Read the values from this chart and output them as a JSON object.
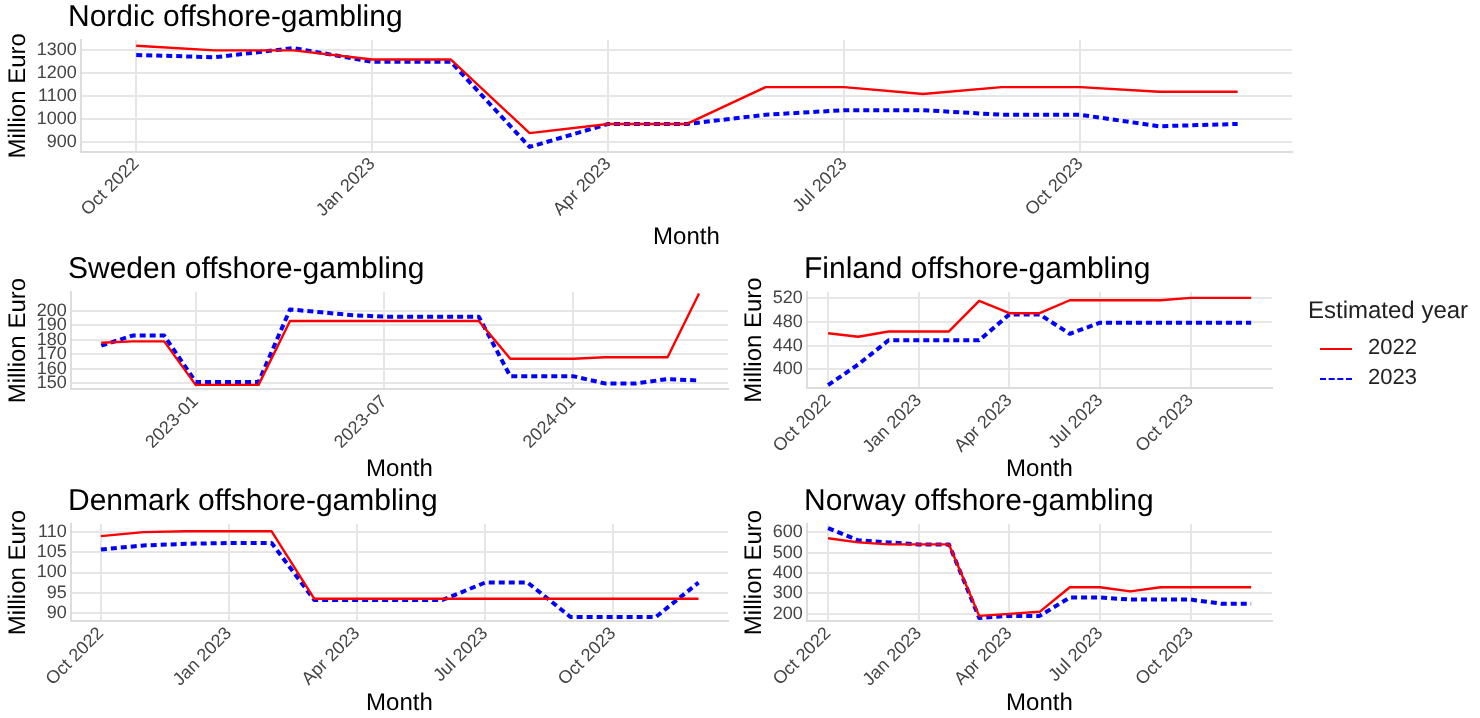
{
  "chart_data": [
    {
      "type": "line",
      "title": "Nordic offshore-gambling",
      "xlabel": "Month",
      "ylabel": "Million Euro",
      "grid": true,
      "marker": "none",
      "legend": "right",
      "legend_title": "Estimated year",
      "x": [
        "2022-10",
        "2022-11",
        "2022-12",
        "2023-01",
        "2023-02",
        "2023-03",
        "2023-04",
        "2023-05",
        "2023-06",
        "2023-07",
        "2023-08",
        "2023-09",
        "2023-10",
        "2023-11",
        "2023-12"
      ],
      "xlim": [
        "2022-09-10",
        "2023-12-22"
      ],
      "xticks": [
        {
          "value": "2022-10",
          "label": "Oct 2022"
        },
        {
          "value": "2023-01",
          "label": "Jan 2023"
        },
        {
          "value": "2023-04",
          "label": "Apr 2023"
        },
        {
          "value": "2023-07",
          "label": "Jul 2023"
        },
        {
          "value": "2023-10",
          "label": "Oct 2023"
        }
      ],
      "ylim": [
        860,
        1345
      ],
      "yticks": [
        900,
        1000,
        1100,
        1200,
        1300
      ],
      "series": [
        {
          "name": "2022",
          "color": "#ff0000",
          "line_style": "solid",
          "values": [
            1320,
            1300,
            1300,
            1260,
            1260,
            940,
            980,
            980,
            1140,
            1140,
            1110,
            1140,
            1140,
            1120,
            1120
          ]
        },
        {
          "name": "2023",
          "color": "#0000ff",
          "line_style": "dashed",
          "values": [
            1280,
            1270,
            1310,
            1250,
            1250,
            880,
            980,
            980,
            1020,
            1040,
            1040,
            1020,
            1020,
            970,
            980
          ]
        }
      ]
    },
    {
      "type": "line",
      "title": "Sweden offshore-gambling",
      "xlabel": "Month",
      "ylabel": "Million Euro",
      "grid": true,
      "marker": "none",
      "x": [
        "2022-10",
        "2022-11",
        "2022-12",
        "2023-01",
        "2023-02",
        "2023-03",
        "2023-04",
        "2023-05",
        "2023-06",
        "2023-07",
        "2023-08",
        "2023-09",
        "2023-10",
        "2023-11",
        "2023-12",
        "2024-01",
        "2024-02",
        "2024-03",
        "2024-04",
        "2024-05"
      ],
      "xlim": [
        "2022-09-02",
        "2024-05-29"
      ],
      "xticks": [
        {
          "value": "2023-01",
          "label": "2023-01"
        },
        {
          "value": "2023-07",
          "label": "2023-07"
        },
        {
          "value": "2024-01",
          "label": "2024-01"
        }
      ],
      "ylim": [
        146,
        213
      ],
      "yticks": [
        150,
        160,
        170,
        180,
        190,
        200
      ],
      "series": [
        {
          "name": "2022",
          "color": "#ff0000",
          "line_style": "solid",
          "values": [
            178,
            179,
            179,
            149,
            149,
            149,
            193,
            193,
            193,
            193,
            193,
            193,
            193,
            167,
            167,
            167,
            168,
            168,
            168,
            212
          ]
        },
        {
          "name": "2023",
          "color": "#0000ff",
          "line_style": "dashed",
          "values": [
            176,
            183,
            183,
            151,
            151,
            151,
            201,
            199,
            197,
            196,
            196,
            196,
            196,
            155,
            155,
            155,
            150,
            150,
            153,
            152
          ]
        }
      ]
    },
    {
      "type": "line",
      "title": "Finland offshore-gambling",
      "xlabel": "Month",
      "ylabel": "Million Euro",
      "grid": true,
      "marker": "none",
      "x": [
        "2022-10",
        "2022-11",
        "2022-12",
        "2023-01",
        "2023-02",
        "2023-03",
        "2023-04",
        "2023-05",
        "2023-06",
        "2023-07",
        "2023-08",
        "2023-09",
        "2023-10",
        "2023-11",
        "2023-12"
      ],
      "xlim": [
        "2022-09-10",
        "2023-12-22"
      ],
      "xticks": [
        {
          "value": "2022-10",
          "label": "Oct 2022"
        },
        {
          "value": "2023-01",
          "label": "Jan 2023"
        },
        {
          "value": "2023-04",
          "label": "Apr 2023"
        },
        {
          "value": "2023-07",
          "label": "Jul 2023"
        },
        {
          "value": "2023-10",
          "label": "Oct 2023"
        }
      ],
      "ylim": [
        368,
        531
      ],
      "yticks": [
        400,
        440,
        480,
        520
      ],
      "series": [
        {
          "name": "2022",
          "color": "#ff0000",
          "line_style": "solid",
          "values": [
            461,
            455,
            464,
            464,
            464,
            516,
            495,
            495,
            517,
            517,
            517,
            517,
            521,
            521,
            521
          ]
        },
        {
          "name": "2023",
          "color": "#0000ff",
          "line_style": "dashed",
          "values": [
            373,
            408,
            449,
            449,
            449,
            449,
            493,
            493,
            460,
            479,
            479,
            479,
            479,
            479,
            479
          ]
        }
      ]
    },
    {
      "type": "line",
      "title": "Denmark offshore-gambling",
      "xlabel": "Month",
      "ylabel": "Million Euro",
      "grid": true,
      "marker": "none",
      "x": [
        "2022-10",
        "2022-11",
        "2022-12",
        "2023-01",
        "2023-02",
        "2023-03",
        "2023-04",
        "2023-05",
        "2023-06",
        "2023-07",
        "2023-08",
        "2023-09",
        "2023-10",
        "2023-11",
        "2023-12"
      ],
      "xlim": [
        "2022-09-10",
        "2023-12-22"
      ],
      "xticks": [
        {
          "value": "2022-10",
          "label": "Oct 2022"
        },
        {
          "value": "2023-01",
          "label": "Jan 2023"
        },
        {
          "value": "2023-04",
          "label": "Apr 2023"
        },
        {
          "value": "2023-07",
          "label": "Jul 2023"
        },
        {
          "value": "2023-10",
          "label": "Oct 2023"
        }
      ],
      "ylim": [
        88,
        112
      ],
      "yticks": [
        90,
        95,
        100,
        105,
        110
      ],
      "series": [
        {
          "name": "2022",
          "color": "#ff0000",
          "line_style": "solid",
          "values": [
            109,
            110,
            110.2,
            110.2,
            110.2,
            93.5,
            93.5,
            93.5,
            93.5,
            93.5,
            93.5,
            93.5,
            93.5,
            93.5,
            93.5
          ]
        },
        {
          "name": "2023",
          "color": "#0000ff",
          "line_style": "dashed",
          "values": [
            105.7,
            106.7,
            107.1,
            107.3,
            107.3,
            93.2,
            93.2,
            93.2,
            93.2,
            97.5,
            97.5,
            89,
            89,
            89,
            97.5
          ]
        }
      ]
    },
    {
      "type": "line",
      "title": "Norway offshore-gambling",
      "xlabel": "Month",
      "ylabel": "Million Euro",
      "grid": true,
      "marker": "none",
      "x": [
        "2022-10",
        "2022-11",
        "2022-12",
        "2023-01",
        "2023-02",
        "2023-03",
        "2023-04",
        "2023-05",
        "2023-06",
        "2023-07",
        "2023-08",
        "2023-09",
        "2023-10",
        "2023-11",
        "2023-12"
      ],
      "xlim": [
        "2022-09-10",
        "2023-12-22"
      ],
      "xticks": [
        {
          "value": "2022-10",
          "label": "Oct 2022"
        },
        {
          "value": "2023-01",
          "label": "Jan 2023"
        },
        {
          "value": "2023-04",
          "label": "Apr 2023"
        },
        {
          "value": "2023-07",
          "label": "Jul 2023"
        },
        {
          "value": "2023-10",
          "label": "Oct 2023"
        }
      ],
      "ylim": [
        165,
        640
      ],
      "yticks": [
        200,
        300,
        400,
        500,
        600
      ],
      "series": [
        {
          "name": "2022",
          "color": "#ff0000",
          "line_style": "solid",
          "values": [
            570,
            550,
            540,
            540,
            540,
            190,
            200,
            210,
            330,
            330,
            310,
            330,
            330,
            330,
            330
          ]
        },
        {
          "name": "2023",
          "color": "#0000ff",
          "line_style": "dashed",
          "values": [
            620,
            560,
            550,
            540,
            540,
            180,
            190,
            190,
            280,
            280,
            270,
            270,
            270,
            250,
            250
          ]
        }
      ]
    }
  ]
}
